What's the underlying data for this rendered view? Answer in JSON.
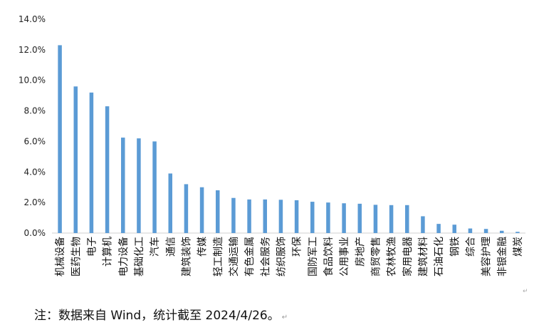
{
  "chart_data": {
    "type": "bar",
    "title": "",
    "xlabel": "",
    "ylabel": "",
    "ylim": [
      0,
      14
    ],
    "yticks": [
      "14.0%",
      "12.0%",
      "10.0%",
      "8.0%",
      "6.0%",
      "4.0%",
      "2.0%",
      "0.0%"
    ],
    "ytick_values": [
      14,
      12,
      10,
      8,
      6,
      4,
      2,
      0
    ],
    "grid": false,
    "legend": "none",
    "bar_color": "#5b9bd5",
    "categories": [
      "机械设备",
      "医药生物",
      "电子",
      "计算机",
      "电力设备",
      "基础化工",
      "汽车",
      "通信",
      "建筑装饰",
      "传媒",
      "轻工制造",
      "交通运输",
      "有色金属",
      "社会服务",
      "纺织服饰",
      "环保",
      "国防军工",
      "食品饮料",
      "公用事业",
      "房地产",
      "商贸零售",
      "农林牧渔",
      "家用电器",
      "建筑材料",
      "石油石化",
      "钢铁",
      "综合",
      "美容护理",
      "非银金融",
      "煤炭"
    ],
    "values": [
      12.3,
      9.6,
      9.2,
      8.3,
      6.25,
      6.2,
      6.0,
      3.9,
      3.2,
      3.0,
      2.8,
      2.3,
      2.2,
      2.2,
      2.18,
      2.15,
      2.05,
      2.0,
      1.95,
      1.92,
      1.85,
      1.83,
      1.83,
      1.1,
      0.6,
      0.55,
      0.3,
      0.27,
      0.15,
      0.08
    ]
  },
  "note": {
    "text": "注：数据来自 Wind，统计截至 2024/4/26。",
    "mark": "↵"
  },
  "corner_mark": "↵"
}
